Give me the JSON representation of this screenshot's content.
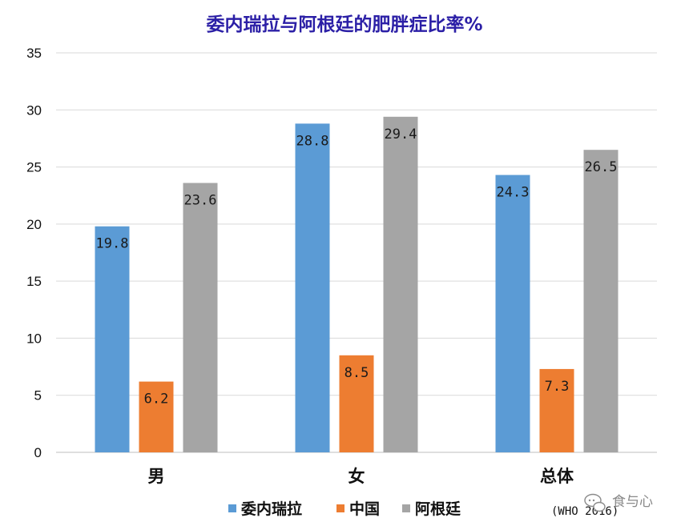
{
  "chart_data": {
    "type": "bar",
    "title": "委内瑞拉与阿根廷的肥胖症比率%",
    "categories": [
      "男",
      "女",
      "总体"
    ],
    "series": [
      {
        "name": "委内瑞拉",
        "color": "#5b9bd5",
        "values": [
          19.8,
          28.8,
          24.3
        ]
      },
      {
        "name": "中国",
        "color": "#ed7d31",
        "values": [
          6.2,
          8.5,
          7.3
        ]
      },
      {
        "name": "阿根廷",
        "color": "#a5a5a5",
        "values": [
          23.6,
          29.4,
          26.5
        ]
      }
    ],
    "ylim": [
      0,
      35
    ],
    "yticks": [
      0,
      5,
      10,
      15,
      20,
      25,
      30,
      35
    ],
    "grid": true,
    "legend_position": "bottom",
    "source_note": "(WHO 2016)"
  },
  "watermark": {
    "icon": "chat-bubble-icon",
    "text": "食与心"
  }
}
